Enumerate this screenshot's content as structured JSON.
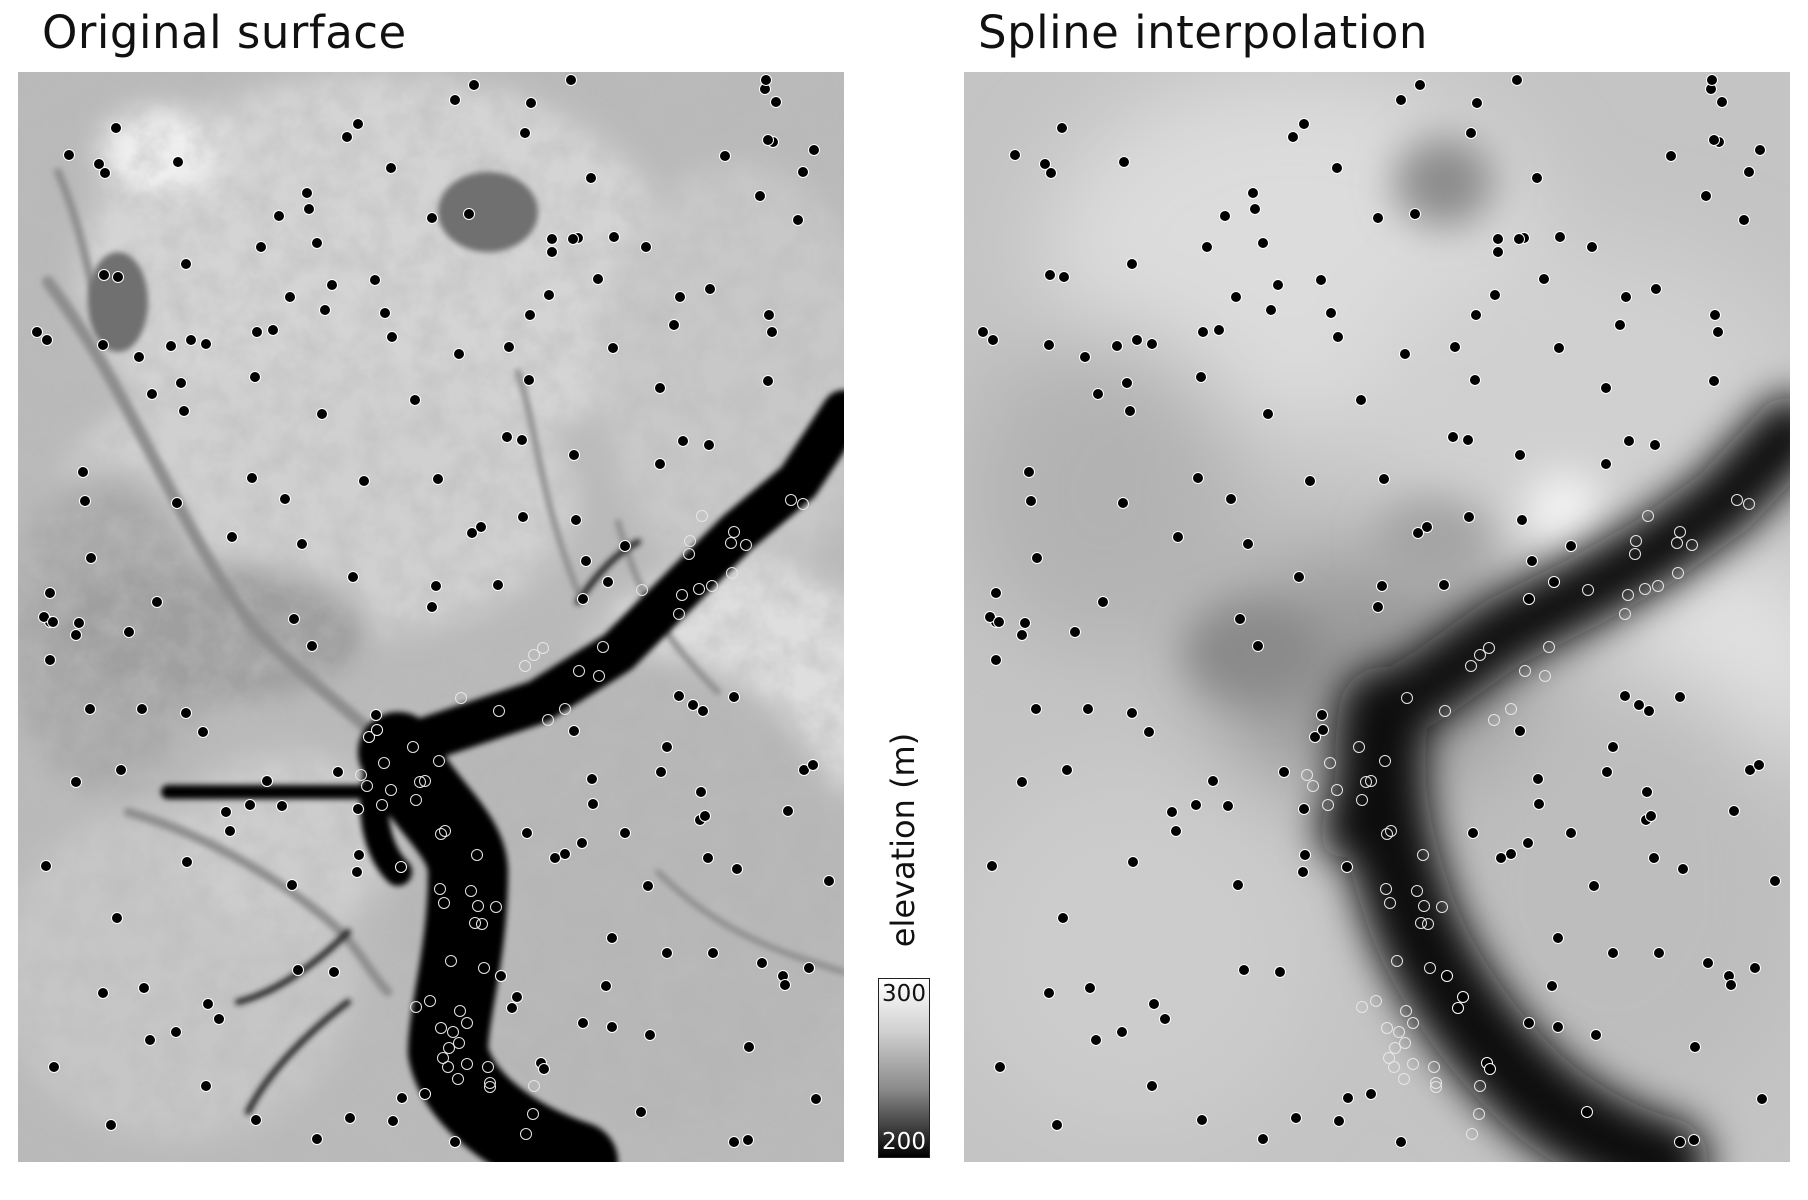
{
  "panels": {
    "left": {
      "title": "Original surface"
    },
    "right": {
      "title": "Spline interpolation"
    }
  },
  "legend": {
    "label": "elevation (m)",
    "max": "300",
    "min": "200",
    "scale": "grayscale, white = high, black = low"
  },
  "colors": {
    "background": "#ffffff",
    "low": "#000000",
    "high": "#ffffff",
    "sample_dot": "#000000",
    "sample_dot_outline": "#ffffff"
  }
}
